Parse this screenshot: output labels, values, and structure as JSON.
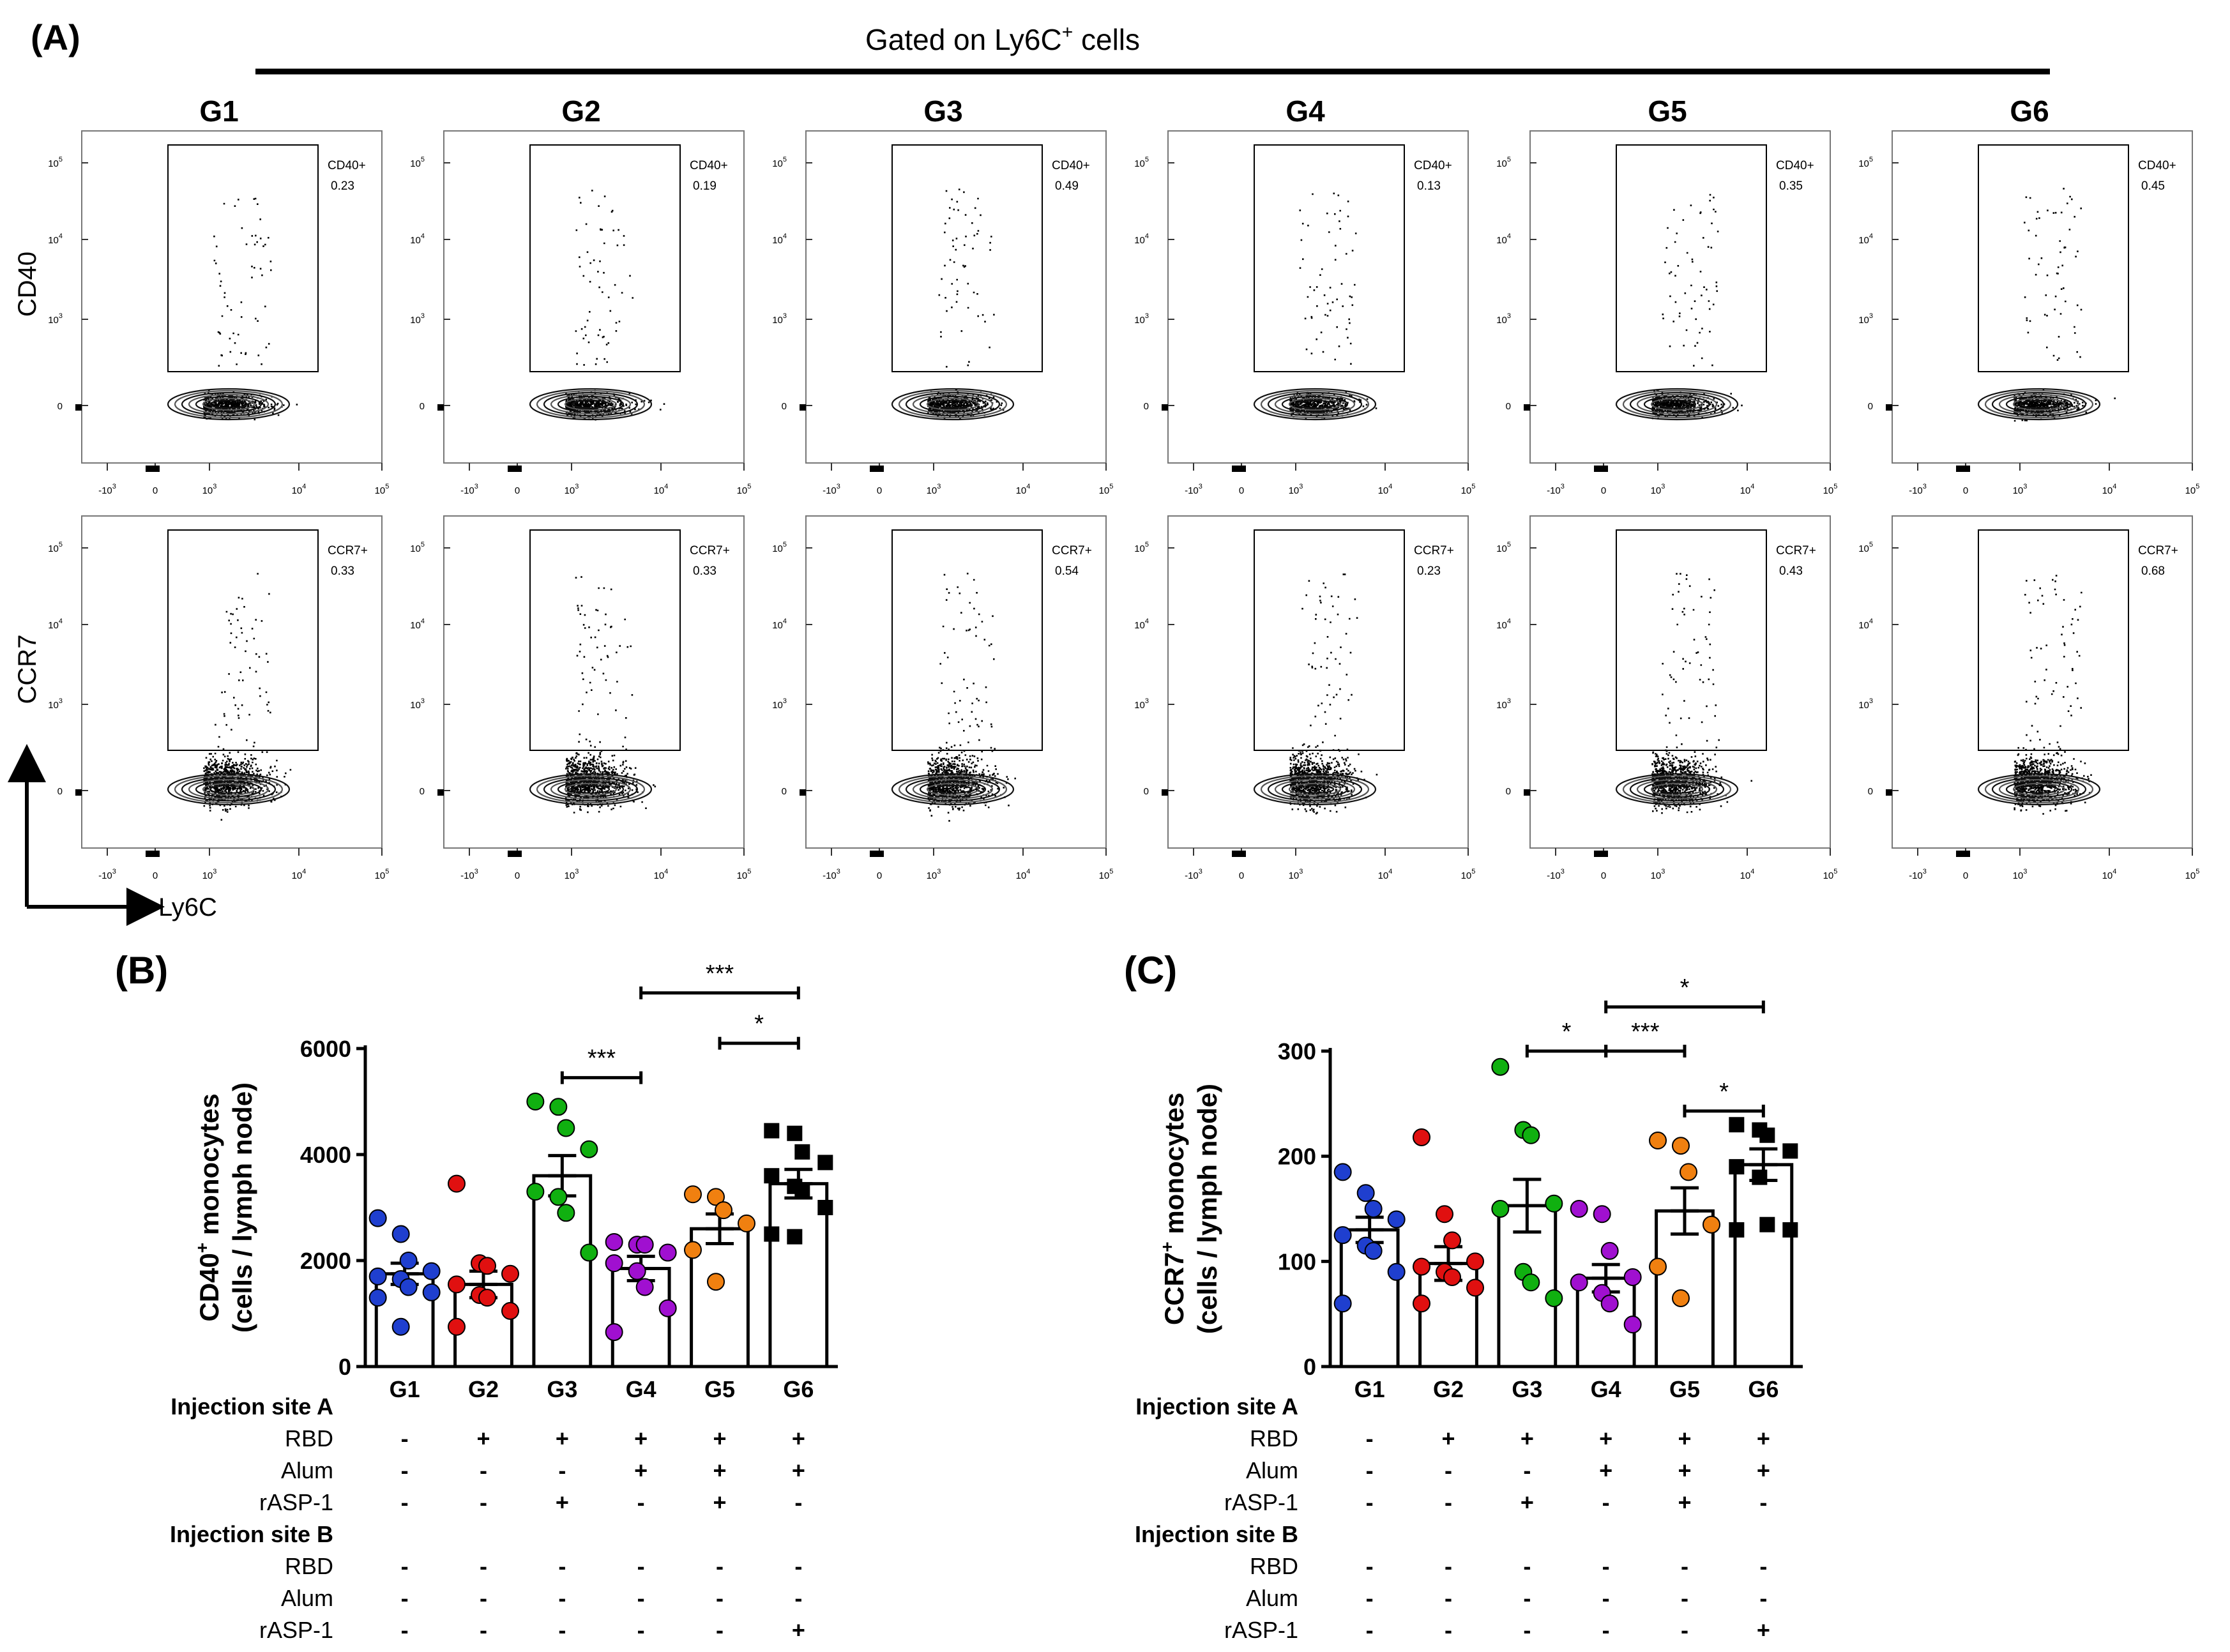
{
  "panel_labels": {
    "a": "(A)",
    "b": "(B)",
    "c": "(C)"
  },
  "flow": {
    "gate_title_prefix": "Gated on Ly6C",
    "gate_title_sup": "+",
    "gate_title_suffix": " cells",
    "x_axis_label": "Ly6C",
    "rows": [
      {
        "ylabel": "CD40",
        "gate_name": "CD40+"
      },
      {
        "ylabel": "CCR7",
        "gate_name": "CCR7+"
      }
    ],
    "groups": [
      "G1",
      "G2",
      "G3",
      "G4",
      "G5",
      "G6"
    ],
    "percentages": [
      [
        "0.23",
        "0.19",
        "0.49",
        "0.13",
        "0.35",
        "0.45"
      ],
      [
        "0.33",
        "0.33",
        "0.54",
        "0.23",
        "0.43",
        "0.68"
      ]
    ],
    "x_ticks": [
      "-10",
      "0",
      "10",
      "10",
      "10"
    ],
    "x_tick_exps": [
      "3",
      "",
      "3",
      "4",
      "5"
    ],
    "y_ticks": [
      "10",
      "10",
      "10",
      "0"
    ],
    "y_tick_exps": [
      "5",
      "4",
      "3",
      ""
    ]
  },
  "chart_data": [
    {
      "type": "bar",
      "panel": "(B)",
      "ylabel_line1_prefix": "CD40",
      "ylabel_line1_sup": "+",
      "ylabel_line1_suffix": " monocytes",
      "ylabel_line2": "(cells / lymph node)",
      "ylim": [
        0,
        6000
      ],
      "yticks": [
        0,
        2000,
        4000,
        6000
      ],
      "ytick_labels": [
        "0",
        "2000",
        "4000",
        "6000"
      ],
      "categories": [
        "G1",
        "G2",
        "G3",
        "G4",
        "G5",
        "G6"
      ],
      "means": [
        1750,
        1550,
        3600,
        1850,
        2600,
        3450
      ],
      "sem": [
        200,
        250,
        380,
        230,
        280,
        270
      ],
      "colors": [
        "#1f3fcf",
        "#e01010",
        "#10b010",
        "#a010d0",
        "#f08010",
        "#000000"
      ],
      "markers": [
        "circle",
        "circle",
        "circle",
        "circle",
        "circle",
        "square"
      ],
      "points": [
        [
          2800,
          2500,
          2000,
          1800,
          1700,
          1650,
          1500,
          1400,
          1300,
          750
        ],
        [
          3450,
          1950,
          1900,
          1750,
          1550,
          1350,
          1300,
          1050,
          750
        ],
        [
          5000,
          4900,
          4500,
          4100,
          3300,
          3200,
          2900,
          2150
        ],
        [
          2350,
          2300,
          2300,
          2150,
          1950,
          1800,
          1500,
          1100,
          650
        ],
        [
          3250,
          3200,
          2950,
          2700,
          2200,
          1600
        ],
        [
          4450,
          4400,
          4050,
          3850,
          3600,
          3400,
          3300,
          3000,
          2500,
          2450
        ]
      ],
      "significance": [
        {
          "from": "G3",
          "to": "G4",
          "label": "***",
          "y": 5450
        },
        {
          "from": "G5",
          "to": "G6",
          "label": "*",
          "y": 6100
        },
        {
          "from": "G4",
          "to": "G6",
          "label": "***",
          "y": 7050
        }
      ]
    },
    {
      "type": "bar",
      "panel": "(C)",
      "ylabel_line1_prefix": "CCR7",
      "ylabel_line1_sup": "+",
      "ylabel_line1_suffix": " monocytes",
      "ylabel_line2": "(cells / lymph node)",
      "ylim": [
        0,
        300
      ],
      "yticks": [
        0,
        100,
        200,
        300
      ],
      "ytick_labels": [
        "0",
        "100",
        "200",
        "300"
      ],
      "categories": [
        "G1",
        "G2",
        "G3",
        "G4",
        "G5",
        "G6"
      ],
      "means": [
        130,
        98,
        153,
        84,
        148,
        192
      ],
      "sem": [
        12,
        16,
        25,
        13,
        22,
        15
      ],
      "colors": [
        "#1f3fcf",
        "#e01010",
        "#10b010",
        "#a010d0",
        "#f08010",
        "#000000"
      ],
      "markers": [
        "circle",
        "circle",
        "circle",
        "circle",
        "circle",
        "square"
      ],
      "points": [
        [
          185,
          165,
          150,
          140,
          125,
          115,
          110,
          90,
          60
        ],
        [
          218,
          145,
          120,
          100,
          95,
          90,
          85,
          75,
          60
        ],
        [
          285,
          225,
          220,
          155,
          150,
          90,
          80,
          65
        ],
        [
          150,
          145,
          110,
          85,
          80,
          70,
          60,
          40
        ],
        [
          215,
          210,
          185,
          135,
          95,
          65
        ],
        [
          230,
          225,
          220,
          205,
          190,
          180,
          135,
          130,
          130
        ]
      ],
      "significance": [
        {
          "from": "G3",
          "to": "G4",
          "label": "*",
          "y": 300
        },
        {
          "from": "G4",
          "to": "G5",
          "label": "***",
          "y": 300
        },
        {
          "from": "G4",
          "to": "G6",
          "label": "*",
          "y": 342
        },
        {
          "from": "G5",
          "to": "G6",
          "label": "*",
          "y": 243
        }
      ]
    }
  ],
  "injection_table": {
    "rows": [
      {
        "label": "Injection site A",
        "bold": true,
        "values": [
          "",
          "",
          "",
          "",
          "",
          ""
        ]
      },
      {
        "label": "RBD",
        "bold": false,
        "values": [
          "-",
          "+",
          "+",
          "+",
          "+",
          "+"
        ]
      },
      {
        "label": "Alum",
        "bold": false,
        "values": [
          "-",
          "-",
          "-",
          "+",
          "+",
          "+"
        ]
      },
      {
        "label": "rASP-1",
        "bold": false,
        "values": [
          "-",
          "-",
          "+",
          "-",
          "+",
          "-"
        ]
      },
      {
        "label": "Injection site B",
        "bold": true,
        "values": [
          "",
          "",
          "",
          "",
          "",
          ""
        ]
      },
      {
        "label": "RBD",
        "bold": false,
        "values": [
          "-",
          "-",
          "-",
          "-",
          "-",
          "-"
        ]
      },
      {
        "label": "Alum",
        "bold": false,
        "values": [
          "-",
          "-",
          "-",
          "-",
          "-",
          "-"
        ]
      },
      {
        "label": "rASP-1",
        "bold": false,
        "values": [
          "-",
          "-",
          "-",
          "-",
          "-",
          "+"
        ]
      }
    ]
  }
}
